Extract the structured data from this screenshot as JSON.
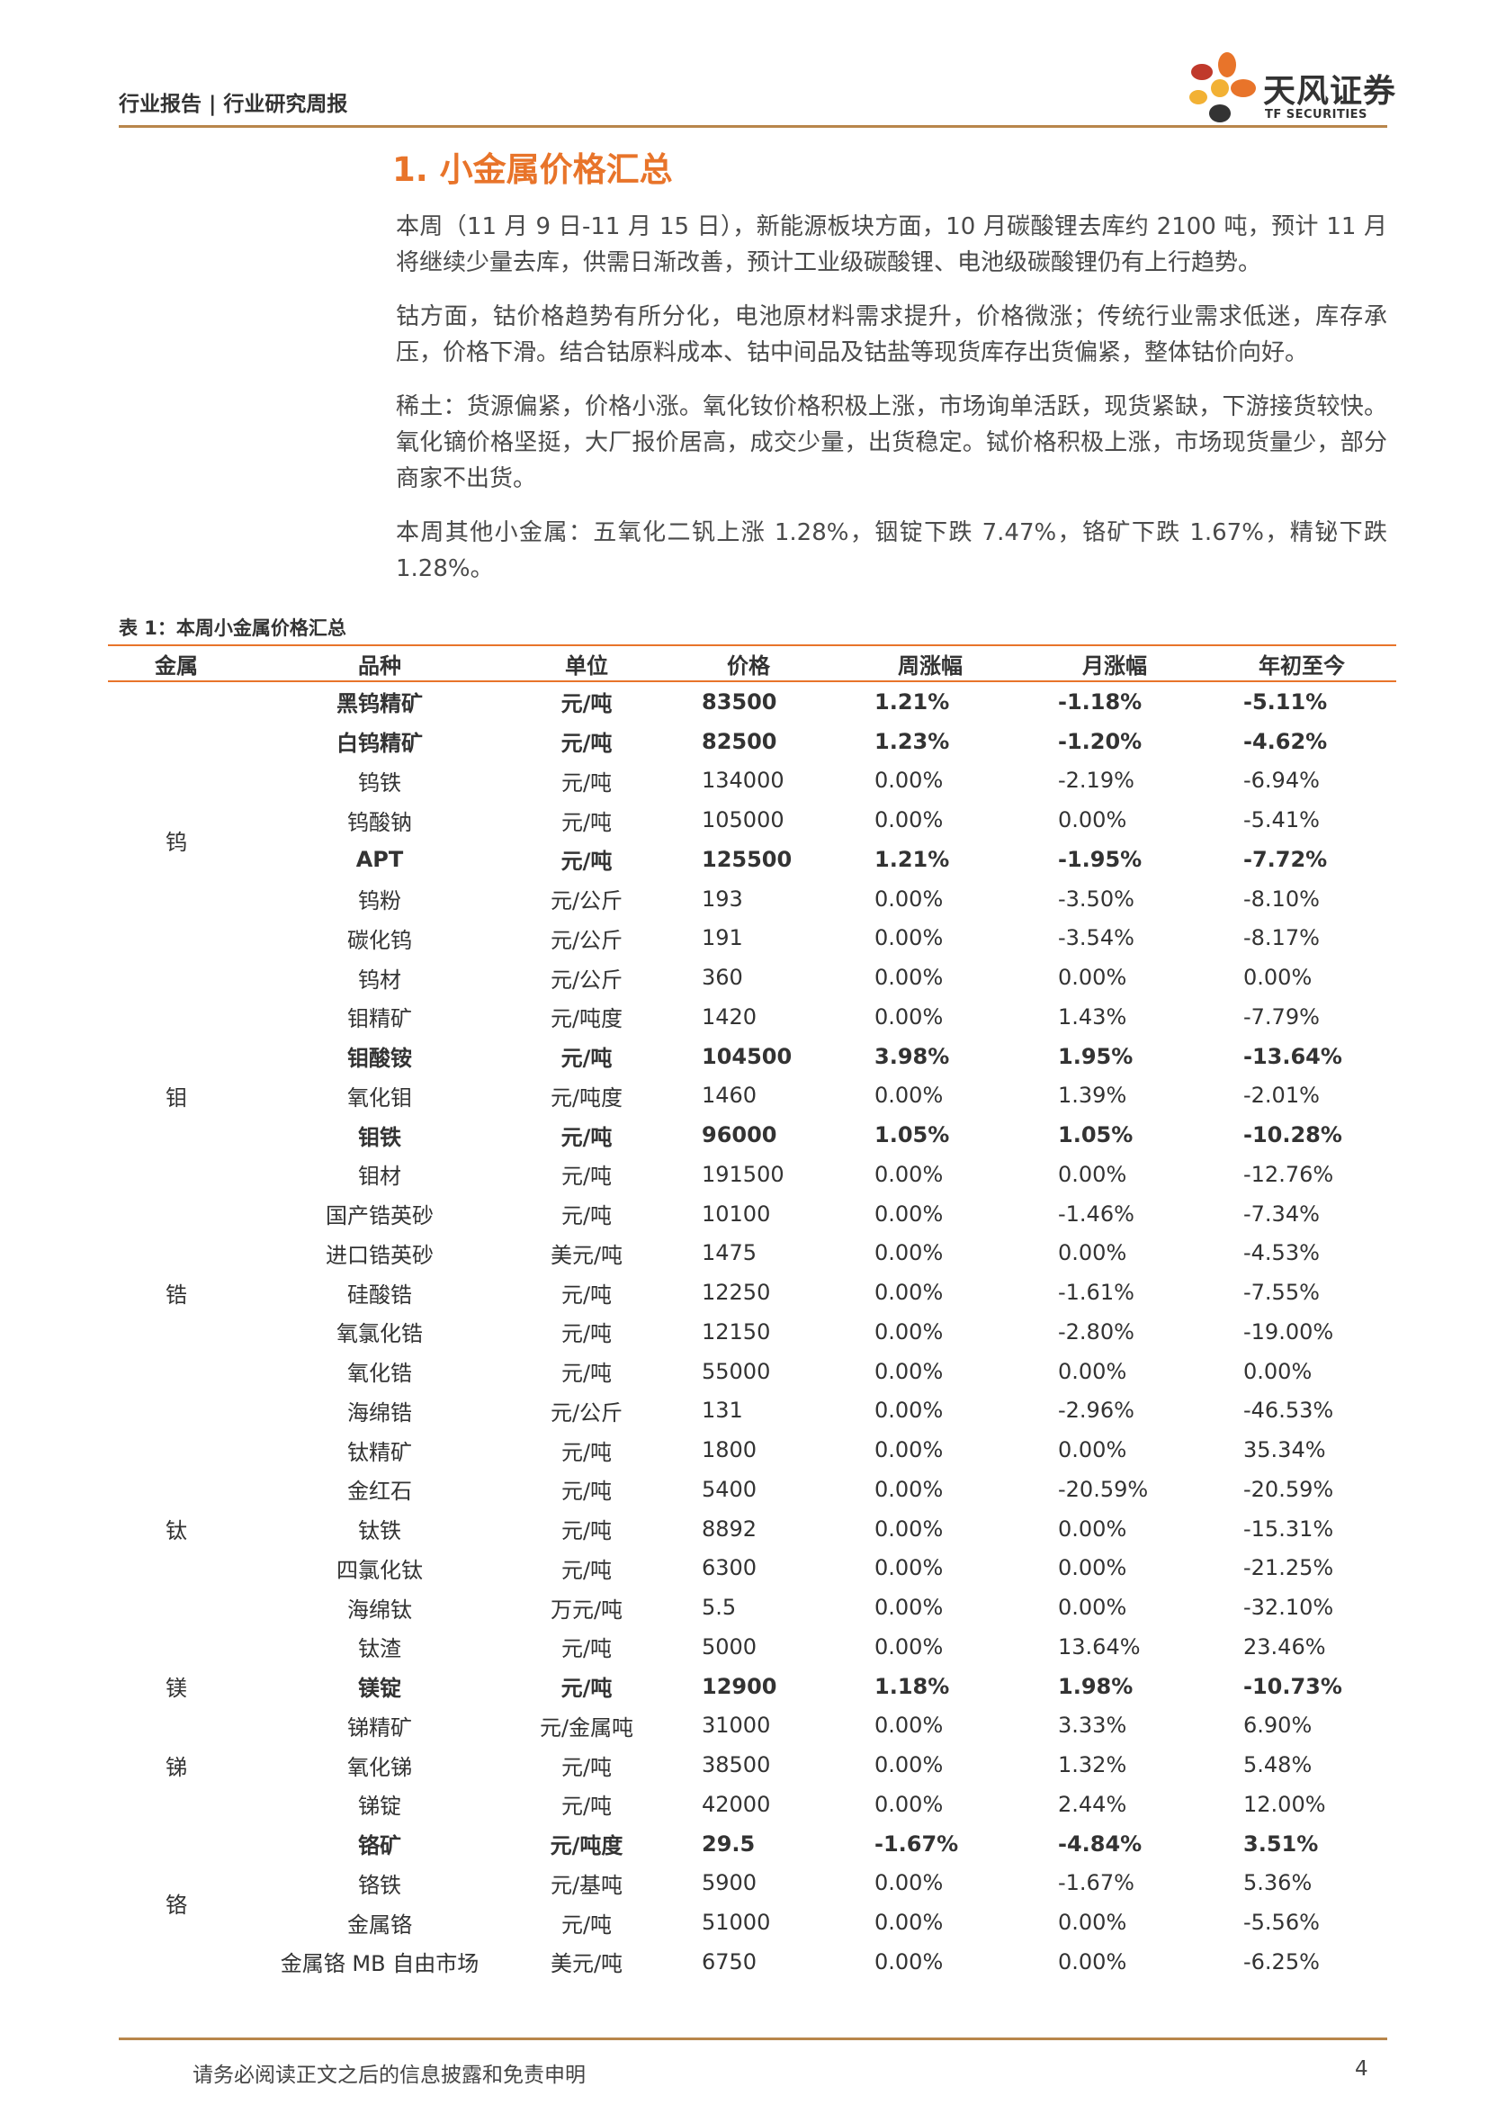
{
  "header": {
    "text": "行业报告 | 行业研究周报"
  },
  "logo": {
    "cn": "天风证券",
    "en": "TF SECURITIES",
    "colors": [
      "#e8742a",
      "#c0392b",
      "#f2b134",
      "#333333"
    ]
  },
  "section": {
    "title": "1. 小金属价格汇总"
  },
  "paragraphs": [
    "本周（11 月 9 日-11 月 15 日），新能源板块方面，10 月碳酸锂去库约 2100 吨，预计 11 月将继续少量去库，供需日渐改善，预计工业级碳酸锂、电池级碳酸锂仍有上行趋势。",
    "钴方面，钴价格趋势有所分化，电池原材料需求提升，价格微涨；传统行业需求低迷，库存承压，价格下滑。结合钴原料成本、钴中间品及钴盐等现货库存出货偏紧，整体钴价向好。",
    "稀土：货源偏紧，价格小涨。氧化钕价格积极上涨，市场询单活跃，现货紧缺，下游接货较快。氧化镝价格坚挺，大厂报价居高，成交少量，出货稳定。铽价格积极上涨，市场现货量少，部分商家不出货。",
    "本周其他小金属：五氧化二钒上涨 1.28%，铟锭下跌 7.47%，铬矿下跌 1.67%，精铋下跌 1.28%。"
  ],
  "table": {
    "caption": "表 1：本周小金属价格汇总",
    "headers": [
      "金属",
      "品种",
      "单位",
      "价格",
      "周涨幅",
      "月涨幅",
      "年初至今"
    ],
    "groups": [
      {
        "metal": "钨",
        "rows": [
          {
            "item": "黑钨精矿",
            "unit": "元/吨",
            "price": "83500",
            "week": "1.21%",
            "month": "-1.18%",
            "ytd": "-5.11%",
            "bold": true
          },
          {
            "item": "白钨精矿",
            "unit": "元/吨",
            "price": "82500",
            "week": "1.23%",
            "month": "-1.20%",
            "ytd": "-4.62%",
            "bold": true
          },
          {
            "item": "钨铁",
            "unit": "元/吨",
            "price": "134000",
            "week": "0.00%",
            "month": "-2.19%",
            "ytd": "-6.94%",
            "bold": false
          },
          {
            "item": "钨酸钠",
            "unit": "元/吨",
            "price": "105000",
            "week": "0.00%",
            "month": "0.00%",
            "ytd": "-5.41%",
            "bold": false
          },
          {
            "item": "APT",
            "unit": "元/吨",
            "price": "125500",
            "week": "1.21%",
            "month": "-1.95%",
            "ytd": "-7.72%",
            "bold": true
          },
          {
            "item": "钨粉",
            "unit": "元/公斤",
            "price": "193",
            "week": "0.00%",
            "month": "-3.50%",
            "ytd": "-8.10%",
            "bold": false
          },
          {
            "item": "碳化钨",
            "unit": "元/公斤",
            "price": "191",
            "week": "0.00%",
            "month": "-3.54%",
            "ytd": "-8.17%",
            "bold": false
          },
          {
            "item": "钨材",
            "unit": "元/公斤",
            "price": "360",
            "week": "0.00%",
            "month": "0.00%",
            "ytd": "0.00%",
            "bold": false
          }
        ]
      },
      {
        "metal": "钼",
        "rows": [
          {
            "item": "钼精矿",
            "unit": "元/吨度",
            "price": "1420",
            "week": "0.00%",
            "month": "1.43%",
            "ytd": "-7.79%",
            "bold": false
          },
          {
            "item": "钼酸铵",
            "unit": "元/吨",
            "price": "104500",
            "week": "3.98%",
            "month": "1.95%",
            "ytd": "-13.64%",
            "bold": true
          },
          {
            "item": "氧化钼",
            "unit": "元/吨度",
            "price": "1460",
            "week": "0.00%",
            "month": "1.39%",
            "ytd": "-2.01%",
            "bold": false
          },
          {
            "item": "钼铁",
            "unit": "元/吨",
            "price": "96000",
            "week": "1.05%",
            "month": "1.05%",
            "ytd": "-10.28%",
            "bold": true
          },
          {
            "item": "钼材",
            "unit": "元/吨",
            "price": "191500",
            "week": "0.00%",
            "month": "0.00%",
            "ytd": "-12.76%",
            "bold": false
          }
        ]
      },
      {
        "metal": "锆",
        "rows": [
          {
            "item": "国产锆英砂",
            "unit": "元/吨",
            "price": "10100",
            "week": "0.00%",
            "month": "-1.46%",
            "ytd": "-7.34%",
            "bold": false
          },
          {
            "item": "进口锆英砂",
            "unit": "美元/吨",
            "price": "1475",
            "week": "0.00%",
            "month": "0.00%",
            "ytd": "-4.53%",
            "bold": false
          },
          {
            "item": "硅酸锆",
            "unit": "元/吨",
            "price": "12250",
            "week": "0.00%",
            "month": "-1.61%",
            "ytd": "-7.55%",
            "bold": false
          },
          {
            "item": "氧氯化锆",
            "unit": "元/吨",
            "price": "12150",
            "week": "0.00%",
            "month": "-2.80%",
            "ytd": "-19.00%",
            "bold": false
          },
          {
            "item": "氧化锆",
            "unit": "元/吨",
            "price": "55000",
            "week": "0.00%",
            "month": "0.00%",
            "ytd": "0.00%",
            "bold": false
          }
        ]
      },
      {
        "metal": "钛",
        "rows": [
          {
            "item": "海绵锆",
            "unit": "元/公斤",
            "price": "131",
            "week": "0.00%",
            "month": "-2.96%",
            "ytd": "-46.53%",
            "bold": false
          },
          {
            "item": "钛精矿",
            "unit": "元/吨",
            "price": "1800",
            "week": "0.00%",
            "month": "0.00%",
            "ytd": "35.34%",
            "bold": false
          },
          {
            "item": "金红石",
            "unit": "元/吨",
            "price": "5400",
            "week": "0.00%",
            "month": "-20.59%",
            "ytd": "-20.59%",
            "bold": false
          },
          {
            "item": "钛铁",
            "unit": "元/吨",
            "price": "8892",
            "week": "0.00%",
            "month": "0.00%",
            "ytd": "-15.31%",
            "bold": false
          },
          {
            "item": "四氯化钛",
            "unit": "元/吨",
            "price": "6300",
            "week": "0.00%",
            "month": "0.00%",
            "ytd": "-21.25%",
            "bold": false
          },
          {
            "item": "海绵钛",
            "unit": "万元/吨",
            "price": "5.5",
            "week": "0.00%",
            "month": "0.00%",
            "ytd": "-32.10%",
            "bold": false
          },
          {
            "item": "钛渣",
            "unit": "元/吨",
            "price": "5000",
            "week": "0.00%",
            "month": "13.64%",
            "ytd": "23.46%",
            "bold": false
          }
        ]
      },
      {
        "metal": "镁",
        "rows": [
          {
            "item": "镁锭",
            "unit": "元/吨",
            "price": "12900",
            "week": "1.18%",
            "month": "1.98%",
            "ytd": "-10.73%",
            "bold": true
          }
        ]
      },
      {
        "metal": "锑",
        "rows": [
          {
            "item": "锑精矿",
            "unit": "元/金属吨",
            "price": "31000",
            "week": "0.00%",
            "month": "3.33%",
            "ytd": "6.90%",
            "bold": false
          },
          {
            "item": "氧化锑",
            "unit": "元/吨",
            "price": "38500",
            "week": "0.00%",
            "month": "1.32%",
            "ytd": "5.48%",
            "bold": false
          },
          {
            "item": "锑锭",
            "unit": "元/吨",
            "price": "42000",
            "week": "0.00%",
            "month": "2.44%",
            "ytd": "12.00%",
            "bold": false
          }
        ]
      },
      {
        "metal": "铬",
        "rows": [
          {
            "item": "铬矿",
            "unit": "元/吨度",
            "price": "29.5",
            "week": "-1.67%",
            "month": "-4.84%",
            "ytd": "3.51%",
            "bold": true
          },
          {
            "item": "铬铁",
            "unit": "元/基吨",
            "price": "5900",
            "week": "0.00%",
            "month": "-1.67%",
            "ytd": "5.36%",
            "bold": false
          },
          {
            "item": "金属铬",
            "unit": "元/吨",
            "price": "51000",
            "week": "0.00%",
            "month": "0.00%",
            "ytd": "-5.56%",
            "bold": false
          },
          {
            "item": "金属铬 MB 自由市场",
            "unit": "美元/吨",
            "price": "6750",
            "week": "0.00%",
            "month": "0.00%",
            "ytd": "-6.25%",
            "bold": false
          }
        ]
      }
    ]
  },
  "footer": {
    "disclaimer": "请务必阅读正文之后的信息披露和免责申明",
    "page": "4"
  }
}
